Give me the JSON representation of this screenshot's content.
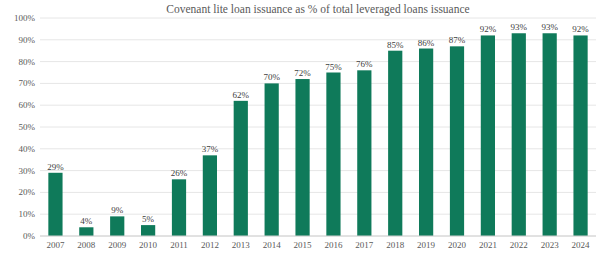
{
  "chart_data": {
    "type": "bar",
    "title": "Covenant lite loan issuance as % of total leveraged loans issuance",
    "categories": [
      "2007",
      "2008",
      "2009",
      "2010",
      "2011",
      "2012",
      "2013",
      "2014",
      "2015",
      "2016",
      "2017",
      "2018",
      "2019",
      "2020",
      "2021",
      "2022",
      "2023",
      "2024"
    ],
    "values": [
      29,
      4,
      9,
      5,
      26,
      37,
      62,
      70,
      72,
      75,
      76,
      85,
      86,
      87,
      92,
      93,
      93,
      92
    ],
    "value_labels": [
      "29%",
      "4%",
      "9%",
      "5%",
      "26%",
      "37%",
      "62%",
      "70%",
      "72%",
      "75%",
      "76%",
      "85%",
      "86%",
      "87%",
      "92%",
      "93%",
      "93%",
      "92%"
    ],
    "data_labels": true,
    "color": "#0f7a5a",
    "ylim": [
      0,
      100
    ],
    "yticks": [
      {
        "value": 0,
        "label": "0%"
      },
      {
        "value": 10,
        "label": "10%"
      },
      {
        "value": 20,
        "label": "20%"
      },
      {
        "value": 30,
        "label": "30%"
      },
      {
        "value": 40,
        "label": "40%"
      },
      {
        "value": 50,
        "label": "50%"
      },
      {
        "value": 60,
        "label": "60%"
      },
      {
        "value": 70,
        "label": "70%"
      },
      {
        "value": 80,
        "label": "80%"
      },
      {
        "value": 90,
        "label": "90%"
      },
      {
        "value": 100,
        "label": "100%"
      }
    ],
    "grid": true
  }
}
